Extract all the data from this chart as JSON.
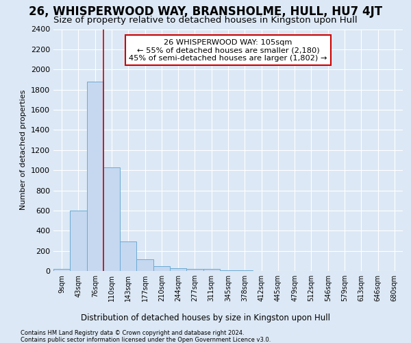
{
  "title": "26, WHISPERWOOD WAY, BRANSHOLME, HULL, HU7 4JT",
  "subtitle": "Size of property relative to detached houses in Kingston upon Hull",
  "xlabel_bottom": "Distribution of detached houses by size in Kingston upon Hull",
  "ylabel": "Number of detached properties",
  "footnote1": "Contains HM Land Registry data © Crown copyright and database right 2024.",
  "footnote2": "Contains public sector information licensed under the Open Government Licence v3.0.",
  "bar_categories": [
    "9sqm",
    "43sqm",
    "76sqm",
    "110sqm",
    "143sqm",
    "177sqm",
    "210sqm",
    "244sqm",
    "277sqm",
    "311sqm",
    "345sqm",
    "378sqm",
    "412sqm",
    "445sqm",
    "479sqm",
    "512sqm",
    "546sqm",
    "579sqm",
    "613sqm",
    "646sqm",
    "680sqm"
  ],
  "bar_values": [
    20,
    600,
    1880,
    1030,
    290,
    115,
    50,
    30,
    20,
    20,
    5,
    5,
    0,
    0,
    0,
    0,
    0,
    0,
    0,
    0,
    0
  ],
  "bar_color": "#c5d8f0",
  "bar_edge_color": "#6aaad4",
  "annotation_text_line1": "26 WHISPERWOOD WAY: 105sqm",
  "annotation_text_line2": "← 55% of detached houses are smaller (2,180)",
  "annotation_text_line3": "45% of semi-detached houses are larger (1,802) →",
  "annotation_box_color": "white",
  "annotation_box_edge_color": "#cc0000",
  "vline_color": "#cc0000",
  "ylim": [
    0,
    2400
  ],
  "yticks": [
    0,
    200,
    400,
    600,
    800,
    1000,
    1200,
    1400,
    1600,
    1800,
    2000,
    2200,
    2400
  ],
  "bg_color": "#dce8f5",
  "plot_bg_color": "#dce8f5",
  "grid_color": "white",
  "title_fontsize": 12,
  "subtitle_fontsize": 9.5
}
